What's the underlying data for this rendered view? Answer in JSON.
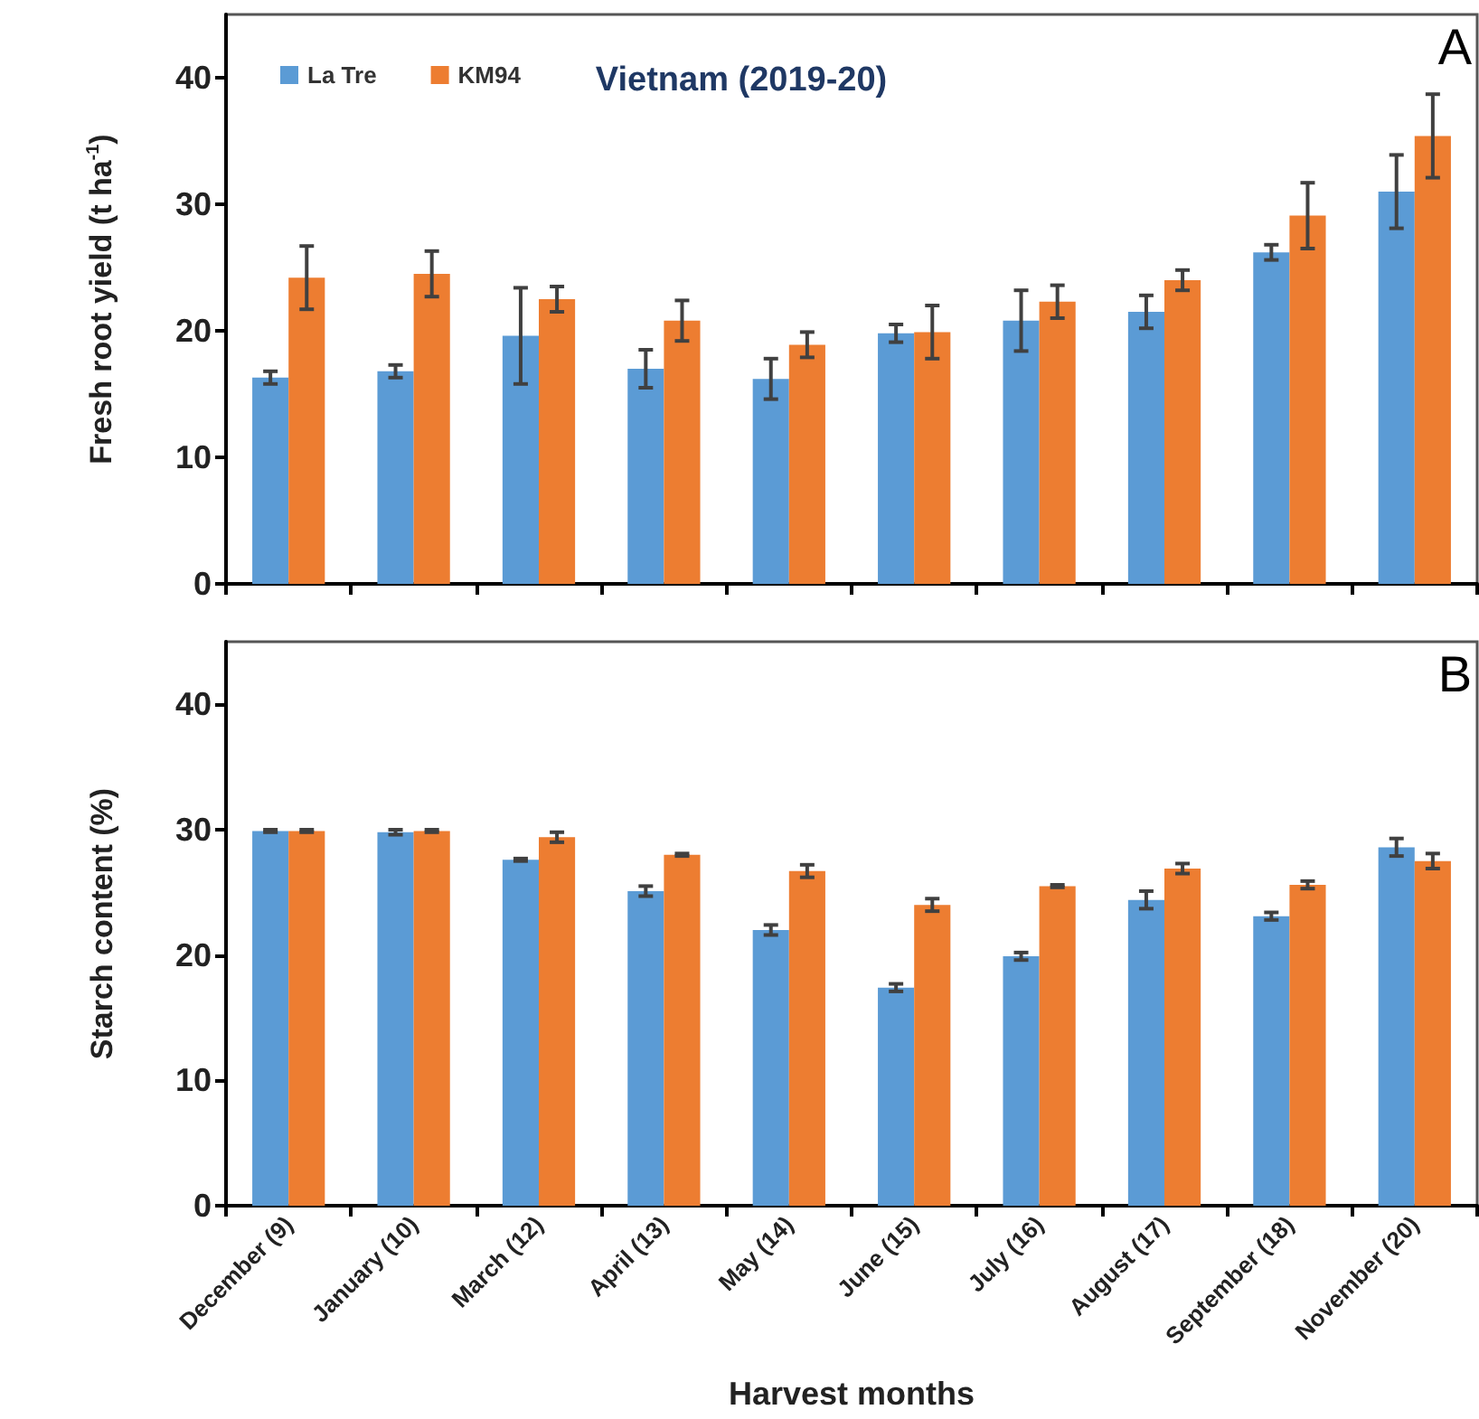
{
  "chart_data": [
    {
      "type": "bar",
      "title": "Vietnam (2019-20)",
      "ylabel": "Fresh root yield (t ha$^{-1}$)",
      "categories": [
        null,
        null,
        null,
        null,
        null,
        null,
        null,
        null,
        null,
        null
      ],
      "series": [
        {
          "name": "La Tre",
          "color": "#5b9bd5",
          "values": [
            16.3,
            16.8,
            19.6,
            17.0,
            16.2,
            19.8,
            20.8,
            21.5,
            26.2,
            31.0
          ],
          "errors": [
            0.5,
            0.5,
            3.8,
            1.5,
            1.6,
            0.7,
            2.4,
            1.3,
            0.6,
            2.9
          ]
        },
        {
          "name": "KM94",
          "color": "#ed7d31",
          "values": [
            24.2,
            24.5,
            22.5,
            20.8,
            18.9,
            19.9,
            22.3,
            24.0,
            29.1,
            35.4
          ],
          "errors": [
            2.5,
            1.8,
            1.0,
            1.6,
            1.0,
            2.1,
            1.3,
            0.8,
            2.6,
            3.3
          ]
        }
      ],
      "ylim": [
        0,
        45
      ],
      "yticks": [
        0,
        10,
        20,
        30,
        40
      ],
      "grid": false,
      "legend": "top left",
      "tick_labels": "y",
      "annotations": [
        "A"
      ]
    },
    {
      "type": "bar",
      "xlabel": "Harvest months",
      "ylabel": "Starch content (%)",
      "categories": [
        "December (9)",
        "January (10)",
        "March (12)",
        "April (13)",
        "May (14)",
        "June (15)",
        "July (16)",
        "August (17)",
        "September (18)",
        "November (20)"
      ],
      "series": [
        {
          "color": "#5b9bd5",
          "values": [
            29.9,
            29.8,
            27.6,
            25.1,
            22.0,
            17.4,
            19.9,
            24.4,
            23.1,
            28.6
          ],
          "errors": [
            0.1,
            0.2,
            0.1,
            0.4,
            0.4,
            0.3,
            0.3,
            0.7,
            0.3,
            0.7
          ]
        },
        {
          "color": "#ed7d31",
          "values": [
            29.9,
            29.9,
            29.4,
            28.0,
            26.7,
            24.0,
            25.5,
            26.9,
            25.6,
            27.5
          ],
          "errors": [
            0.1,
            0.1,
            0.4,
            0.1,
            0.5,
            0.5,
            0.1,
            0.4,
            0.3,
            0.6
          ]
        }
      ],
      "ylim": [
        0,
        45
      ],
      "yticks": [
        0,
        10,
        20,
        30,
        40
      ],
      "grid": false,
      "legend": false,
      "annotations": [
        "B"
      ]
    }
  ]
}
